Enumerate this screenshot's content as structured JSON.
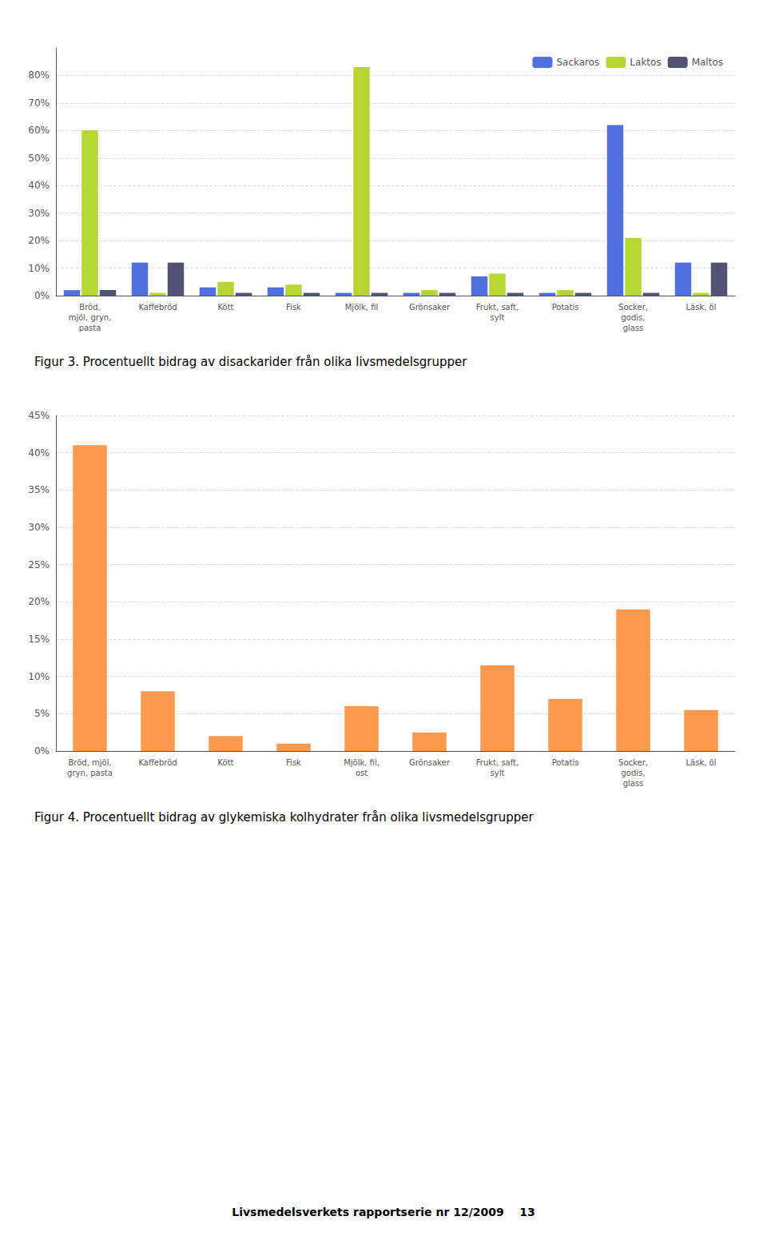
{
  "chart_data": [
    {
      "type": "bar",
      "title": "Figur 3. Procentuellt bidrag av disackarider från olika livsmedelsgrupper",
      "categories": [
        "Bröd,\nmjöl, gryn,\npasta",
        "Kaffebröd",
        "Kött",
        "Fisk",
        "Mjölk, fil",
        "Grönsaker",
        "Frukt, saft,\nsylt",
        "Potatis",
        "Socker,\ngodis,\nglass",
        "Läsk, öl"
      ],
      "series": [
        {
          "name": "Sackaros",
          "values": [
            2,
            12,
            3,
            3,
            1,
            1,
            7,
            1,
            62,
            12
          ]
        },
        {
          "name": "Laktos",
          "values": [
            60,
            1,
            5,
            4,
            83,
            2,
            8,
            2,
            21,
            1
          ]
        },
        {
          "name": "Maltos",
          "values": [
            2,
            12,
            1,
            1,
            1,
            1,
            1,
            1,
            1,
            12
          ]
        }
      ],
      "ylim": [
        0,
        90
      ],
      "yticks": [
        {
          "value": 0,
          "label": "0%"
        },
        {
          "value": 10,
          "label": "10%"
        },
        {
          "value": 20,
          "label": "20%"
        },
        {
          "value": 30,
          "label": "30%"
        },
        {
          "value": 40,
          "label": "40%"
        },
        {
          "value": 50,
          "label": "50%"
        },
        {
          "value": 60,
          "label": "60%"
        },
        {
          "value": 70,
          "label": "70%"
        },
        {
          "value": 80,
          "label": "80%"
        }
      ],
      "grid": true,
      "legend": "upper right"
    },
    {
      "type": "bar",
      "title": "Figur 4. Procentuellt bidrag av glykemiska kolhydrater från olika livsmedelsgrupper",
      "categories": [
        "Bröd, mjöl,\ngryn, pasta",
        "Kaffebröd",
        "Kött",
        "Fisk",
        "Mjölk, fil,\nost",
        "Grönsaker",
        "Frukt, saft,\nsylt",
        "Potatis",
        "Socker,\ngodis,\nglass",
        "Läsk, öl"
      ],
      "values": [
        41,
        8,
        2,
        1,
        6,
        2.5,
        11.5,
        7,
        19,
        5.5
      ],
      "ylim": [
        0,
        45
      ],
      "yticks": [
        {
          "value": 0,
          "label": "0%"
        },
        {
          "value": 5,
          "label": "5%"
        },
        {
          "value": 10,
          "label": "10%"
        },
        {
          "value": 15,
          "label": "15%"
        },
        {
          "value": 20,
          "label": "20%"
        },
        {
          "value": 25,
          "label": "25%"
        },
        {
          "value": 30,
          "label": "30%"
        },
        {
          "value": 35,
          "label": "35%"
        },
        {
          "value": 40,
          "label": "40%"
        },
        {
          "value": 45,
          "label": "45%"
        }
      ],
      "grid": true,
      "annotations": [
        "Livsmedelsverkets rapportserie nr 12/2009    13"
      ]
    }
  ]
}
